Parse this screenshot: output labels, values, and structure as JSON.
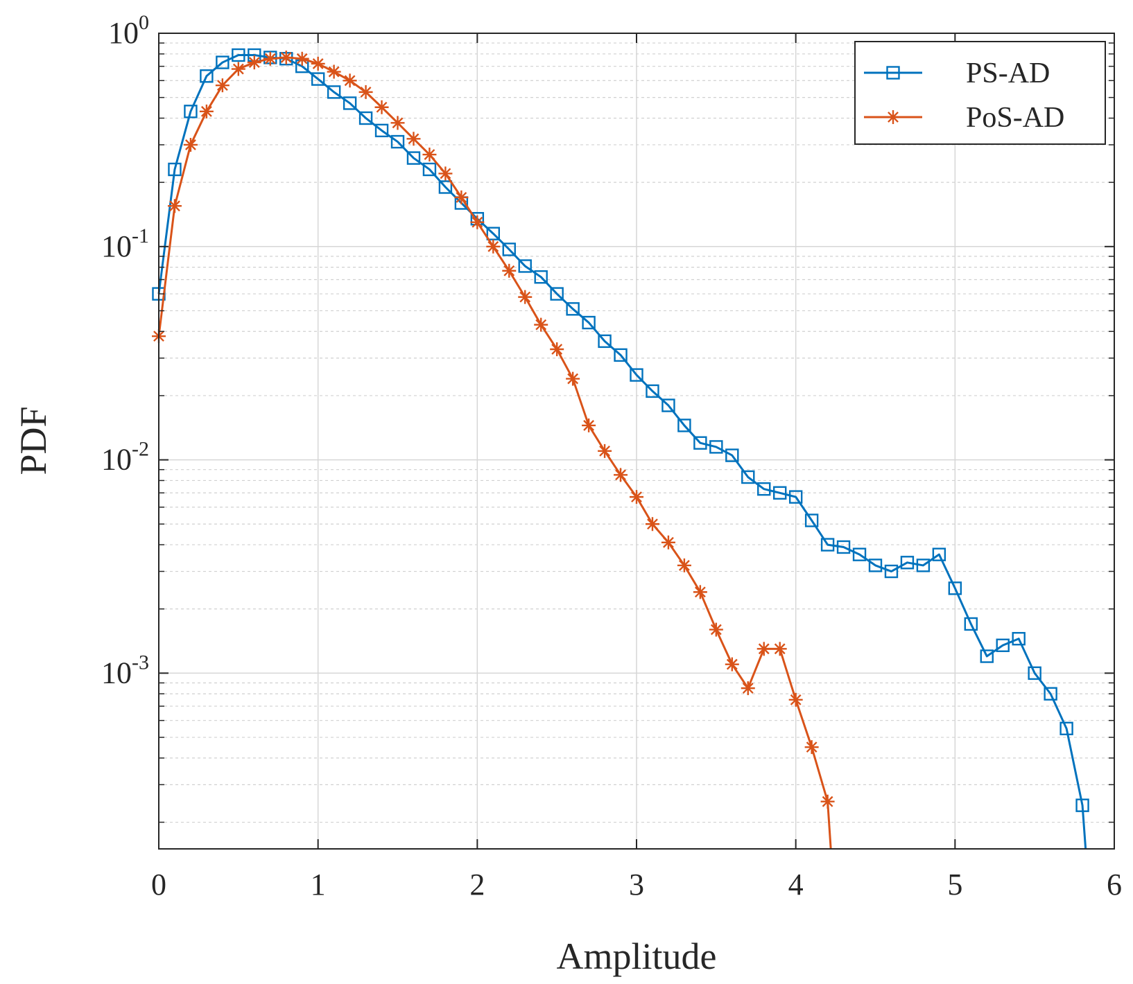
{
  "chart_data": {
    "type": "line",
    "title": "",
    "xlabel": "Amplitude",
    "ylabel": "PDF",
    "xlim": [
      0,
      6
    ],
    "ylim": [
      0.00015,
      1
    ],
    "yscale": "log",
    "grid": true,
    "minor_grid": true,
    "legend_position": "top-right",
    "x_ticks": [
      {
        "value": 0,
        "label": "0"
      },
      {
        "value": 1,
        "label": "1"
      },
      {
        "value": 2,
        "label": "2"
      },
      {
        "value": 3,
        "label": "3"
      },
      {
        "value": 4,
        "label": "4"
      },
      {
        "value": 5,
        "label": "5"
      },
      {
        "value": 6,
        "label": "6"
      }
    ],
    "y_ticks": [
      {
        "value": 1,
        "base": "10",
        "exponent": "0"
      },
      {
        "value": 0.1,
        "base": "10",
        "exponent": "-1"
      },
      {
        "value": 0.01,
        "base": "10",
        "exponent": "-2"
      },
      {
        "value": 0.001,
        "base": "10",
        "exponent": "-3"
      }
    ],
    "series": [
      {
        "name": "PS-AD",
        "color": "#0072BD",
        "marker": "square",
        "x": [
          0.0,
          0.1,
          0.2,
          0.3,
          0.4,
          0.5,
          0.6,
          0.7,
          0.8,
          0.9,
          1.0,
          1.1,
          1.2,
          1.3,
          1.4,
          1.5,
          1.6,
          1.7,
          1.8,
          1.9,
          2.0,
          2.1,
          2.2,
          2.3,
          2.4,
          2.5,
          2.6,
          2.7,
          2.8,
          2.9,
          3.0,
          3.1,
          3.2,
          3.3,
          3.4,
          3.5,
          3.6,
          3.7,
          3.8,
          3.9,
          4.0,
          4.1,
          4.2,
          4.3,
          4.4,
          4.5,
          4.6,
          4.7,
          4.8,
          4.9,
          5.0,
          5.1,
          5.2,
          5.3,
          5.4,
          5.5,
          5.6,
          5.7,
          5.8,
          5.82
        ],
        "y": [
          0.06,
          0.23,
          0.43,
          0.63,
          0.73,
          0.79,
          0.79,
          0.77,
          0.76,
          0.7,
          0.61,
          0.53,
          0.47,
          0.4,
          0.35,
          0.31,
          0.26,
          0.23,
          0.19,
          0.16,
          0.135,
          0.115,
          0.097,
          0.081,
          0.072,
          0.06,
          0.051,
          0.044,
          0.036,
          0.031,
          0.025,
          0.021,
          0.018,
          0.0145,
          0.012,
          0.0115,
          0.0105,
          0.0083,
          0.0073,
          0.007,
          0.0067,
          0.0052,
          0.004,
          0.0039,
          0.0036,
          0.0032,
          0.003,
          0.0033,
          0.0032,
          0.0036,
          0.0025,
          0.0017,
          0.0012,
          0.00135,
          0.00145,
          0.001,
          0.0008,
          0.00055,
          0.00024,
          0.00015
        ]
      },
      {
        "name": "PoS-AD",
        "color": "#D95319",
        "marker": "star",
        "x": [
          0.0,
          0.1,
          0.2,
          0.3,
          0.4,
          0.5,
          0.6,
          0.7,
          0.8,
          0.9,
          1.0,
          1.1,
          1.2,
          1.3,
          1.4,
          1.5,
          1.6,
          1.7,
          1.8,
          1.9,
          2.0,
          2.1,
          2.2,
          2.3,
          2.4,
          2.5,
          2.6,
          2.7,
          2.8,
          2.9,
          3.0,
          3.1,
          3.2,
          3.3,
          3.4,
          3.5,
          3.6,
          3.7,
          3.8,
          3.9,
          4.0,
          4.1,
          4.2,
          4.22
        ],
        "y": [
          0.038,
          0.155,
          0.3,
          0.43,
          0.57,
          0.68,
          0.73,
          0.76,
          0.77,
          0.76,
          0.72,
          0.66,
          0.6,
          0.53,
          0.45,
          0.38,
          0.32,
          0.27,
          0.22,
          0.17,
          0.13,
          0.1,
          0.077,
          0.058,
          0.043,
          0.033,
          0.024,
          0.0145,
          0.011,
          0.0085,
          0.0067,
          0.005,
          0.0041,
          0.0032,
          0.0024,
          0.0016,
          0.0011,
          0.00085,
          0.0013,
          0.0013,
          0.00075,
          0.00045,
          0.00025,
          0.00015
        ]
      }
    ]
  }
}
